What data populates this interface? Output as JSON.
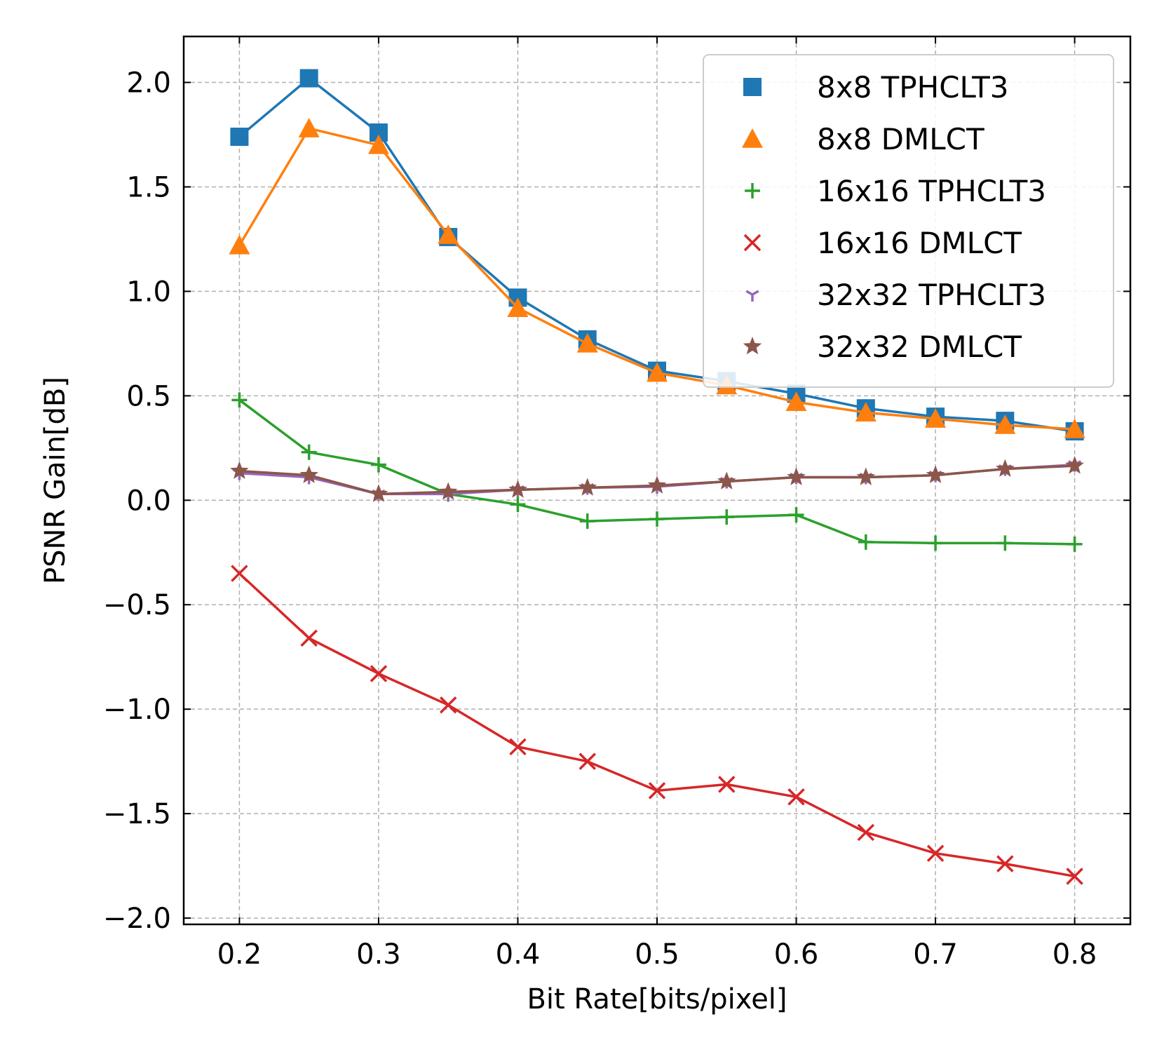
{
  "chart_data": {
    "type": "line",
    "xlabel": "Bit Rate[bits/pixel]",
    "ylabel": "PSNR Gain[dB]",
    "xlim": [
      0.16,
      0.84
    ],
    "ylim": [
      -2.03,
      2.22
    ],
    "x_ticks": [
      0.2,
      0.3,
      0.4,
      0.5,
      0.6,
      0.7,
      0.8
    ],
    "x_tick_labels": [
      "0.2",
      "0.3",
      "0.4",
      "0.5",
      "0.6",
      "0.7",
      "0.8"
    ],
    "y_ticks": [
      2.0,
      1.5,
      1.0,
      0.5,
      0.0,
      -0.5,
      -1.0,
      -1.5,
      -2.0
    ],
    "y_tick_labels": [
      "2.0",
      "1.5",
      "1.0",
      "0.5",
      "0.0",
      "−0.5",
      "−1.0",
      "−1.5",
      "−2.0"
    ],
    "grid": true,
    "legend_position": "top-right",
    "x": [
      0.2,
      0.25,
      0.3,
      0.35,
      0.4,
      0.45,
      0.5,
      0.55,
      0.6,
      0.65,
      0.7,
      0.75,
      0.8
    ],
    "series": [
      {
        "name": "8x8 TPHCLT3",
        "color": "#1f77b4",
        "marker": "square",
        "values": [
          1.74,
          2.02,
          1.76,
          1.26,
          0.97,
          0.77,
          0.62,
          0.57,
          0.51,
          0.44,
          0.4,
          0.38,
          0.33
        ]
      },
      {
        "name": "8x8 DMLCT",
        "color": "#ff7f0e",
        "marker": "triangle",
        "values": [
          1.22,
          1.78,
          1.7,
          1.27,
          0.92,
          0.75,
          0.61,
          0.55,
          0.47,
          0.42,
          0.39,
          0.36,
          0.34
        ]
      },
      {
        "name": "16x16 TPHCLT3",
        "color": "#2ca02c",
        "marker": "plus",
        "values": [
          0.48,
          0.23,
          0.17,
          0.03,
          -0.02,
          -0.1,
          -0.09,
          -0.08,
          -0.07,
          -0.2,
          -0.205,
          -0.205,
          -0.21
        ]
      },
      {
        "name": "16x16 DMLCT",
        "color": "#d62728",
        "marker": "x",
        "values": [
          -0.35,
          -0.66,
          -0.83,
          -0.98,
          -1.18,
          -1.25,
          -1.39,
          -1.36,
          -1.42,
          -1.59,
          -1.69,
          -1.74,
          -1.8
        ]
      },
      {
        "name": "32x32 TPHCLT3",
        "color": "#9467bd",
        "marker": "tri_down",
        "values": [
          0.13,
          0.11,
          0.03,
          0.03,
          0.05,
          0.06,
          0.065,
          0.09,
          0.11,
          0.11,
          0.12,
          0.15,
          0.17
        ]
      },
      {
        "name": "32x32 DMLCT",
        "color": "#8c564b",
        "marker": "star",
        "values": [
          0.14,
          0.12,
          0.03,
          0.04,
          0.05,
          0.06,
          0.07,
          0.09,
          0.11,
          0.11,
          0.12,
          0.15,
          0.165
        ]
      }
    ]
  }
}
